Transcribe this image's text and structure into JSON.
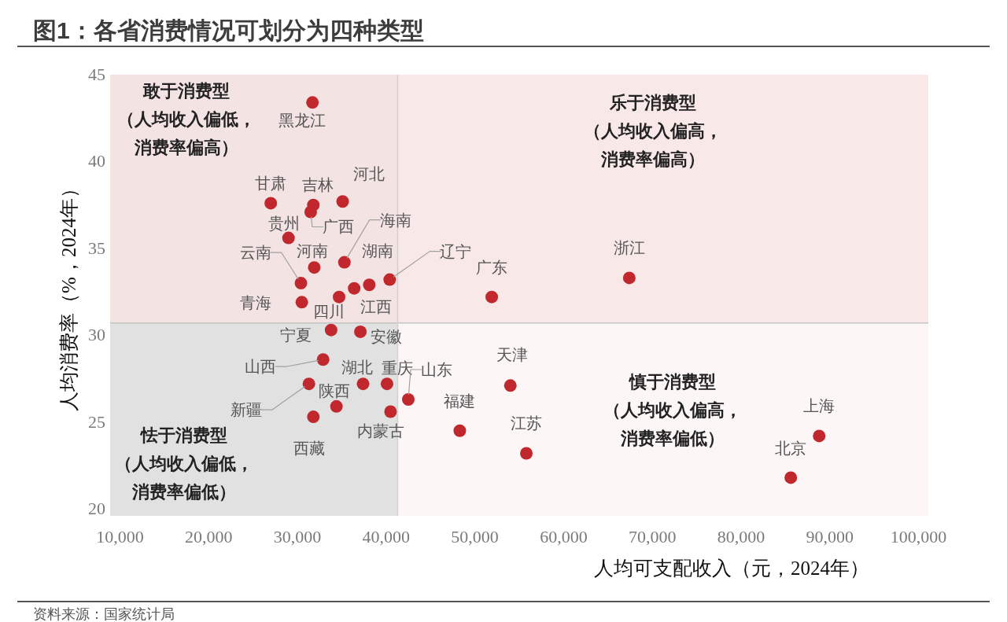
{
  "chart_data": {
    "type": "scatter",
    "title": "图1：各省消费情况可划分为四种类型",
    "xlabel": "人均可支配收入（元，2024年）",
    "ylabel": "人均消费率（%，2024年）",
    "x": [
      31700,
      27000,
      31800,
      31500,
      35100,
      29000,
      31900,
      35300,
      30400,
      30500,
      34700,
      36400,
      38100,
      40400,
      51900,
      67400,
      33800,
      37100,
      32900,
      31300,
      37400,
      40100,
      34400,
      31800,
      40500,
      42500,
      54000,
      48300,
      55800,
      88800,
      85600
    ],
    "values": [
      43.4,
      37.6,
      37.5,
      37.1,
      37.7,
      35.6,
      33.9,
      34.2,
      33.0,
      31.9,
      32.2,
      32.7,
      32.9,
      33.2,
      32.2,
      33.3,
      30.3,
      30.2,
      28.6,
      27.2,
      27.2,
      27.2,
      25.9,
      25.3,
      25.6,
      26.3,
      27.1,
      24.5,
      23.2,
      24.2,
      21.8
    ],
    "color": "#c0282d",
    "marker": "circle",
    "xlim": [
      8900,
      101100
    ],
    "ylim": [
      19.6,
      45
    ],
    "xticks": [
      {
        "value": 10000,
        "label": "10,000"
      },
      {
        "value": 20000,
        "label": "20,000"
      },
      {
        "value": 30000,
        "label": "30,000"
      },
      {
        "value": 40000,
        "label": "40,000"
      },
      {
        "value": 50000,
        "label": "50,000"
      },
      {
        "value": 60000,
        "label": "60,000"
      },
      {
        "value": 70000,
        "label": "70,000"
      },
      {
        "value": 80000,
        "label": "80,000"
      },
      {
        "value": 90000,
        "label": "90,000"
      },
      {
        "value": 100000,
        "label": "100,000"
      }
    ],
    "yticks": [
      20,
      25,
      30,
      35,
      40,
      45
    ],
    "bands": [
      {
        "axis": "x",
        "from": 8900,
        "to": 41300,
        "color": "#e1e1e1"
      },
      {
        "axis": "y",
        "from": 30.7,
        "to": 45,
        "color": "#f8e3e3"
      }
    ],
    "ref_lines": [
      {
        "axis": "y",
        "value": 30.7,
        "color": "#c4c4c4"
      },
      {
        "axis": "x",
        "value": 41300,
        "color": "#d2d2d2"
      }
    ],
    "annotations": [
      {
        "text": "黑龙江",
        "x": 31700,
        "y": 43.4
      },
      {
        "text": "甘肃",
        "x": 27000,
        "y": 37.6
      },
      {
        "text": "吉林",
        "x": 31800,
        "y": 37.5
      },
      {
        "text": "广西",
        "x": 31500,
        "y": 37.1
      },
      {
        "text": "河北",
        "x": 35100,
        "y": 37.7
      },
      {
        "text": "贵州",
        "x": 29000,
        "y": 35.6
      },
      {
        "text": "河南",
        "x": 31900,
        "y": 33.9
      },
      {
        "text": "海南",
        "x": 35300,
        "y": 34.2
      },
      {
        "text": "云南",
        "x": 30400,
        "y": 33.0
      },
      {
        "text": "青海",
        "x": 30500,
        "y": 31.9
      },
      {
        "text": "四川",
        "x": 34700,
        "y": 32.2
      },
      {
        "text": "江西",
        "x": 36400,
        "y": 32.7
      },
      {
        "text": "湖南",
        "x": 38100,
        "y": 32.9
      },
      {
        "text": "辽宁",
        "x": 40400,
        "y": 33.2
      },
      {
        "text": "广东",
        "x": 51900,
        "y": 32.2
      },
      {
        "text": "浙江",
        "x": 67400,
        "y": 33.3
      },
      {
        "text": "宁夏",
        "x": 33800,
        "y": 30.3
      },
      {
        "text": "安徽",
        "x": 37100,
        "y": 30.2
      },
      {
        "text": "山西",
        "x": 32900,
        "y": 28.6
      },
      {
        "text": "新疆",
        "x": 31300,
        "y": 27.2
      },
      {
        "text": "湖北",
        "x": 37400,
        "y": 27.2
      },
      {
        "text": "重庆",
        "x": 40100,
        "y": 27.2
      },
      {
        "text": "陕西",
        "x": 34400,
        "y": 25.9
      },
      {
        "text": "西藏",
        "x": 31800,
        "y": 25.3
      },
      {
        "text": "内蒙古",
        "x": 40500,
        "y": 25.6
      },
      {
        "text": "山东",
        "x": 42500,
        "y": 26.3
      },
      {
        "text": "天津",
        "x": 54000,
        "y": 27.1
      },
      {
        "text": "福建",
        "x": 48300,
        "y": 24.5
      },
      {
        "text": "江苏",
        "x": 55800,
        "y": 23.2
      },
      {
        "text": "上海",
        "x": 88800,
        "y": 24.2
      },
      {
        "text": "北京",
        "x": 85600,
        "y": 21.8
      },
      "敢于消费型（人均收入偏低，消费率偏高）",
      "乐于消费型（人均收入偏高，消费率偏高）",
      "慎于消费型（人均收入偏高，消费率偏低）",
      "怯于消费型（人均收入偏低，消费率偏低）",
      "资料来源：国家统计局"
    ]
  }
}
